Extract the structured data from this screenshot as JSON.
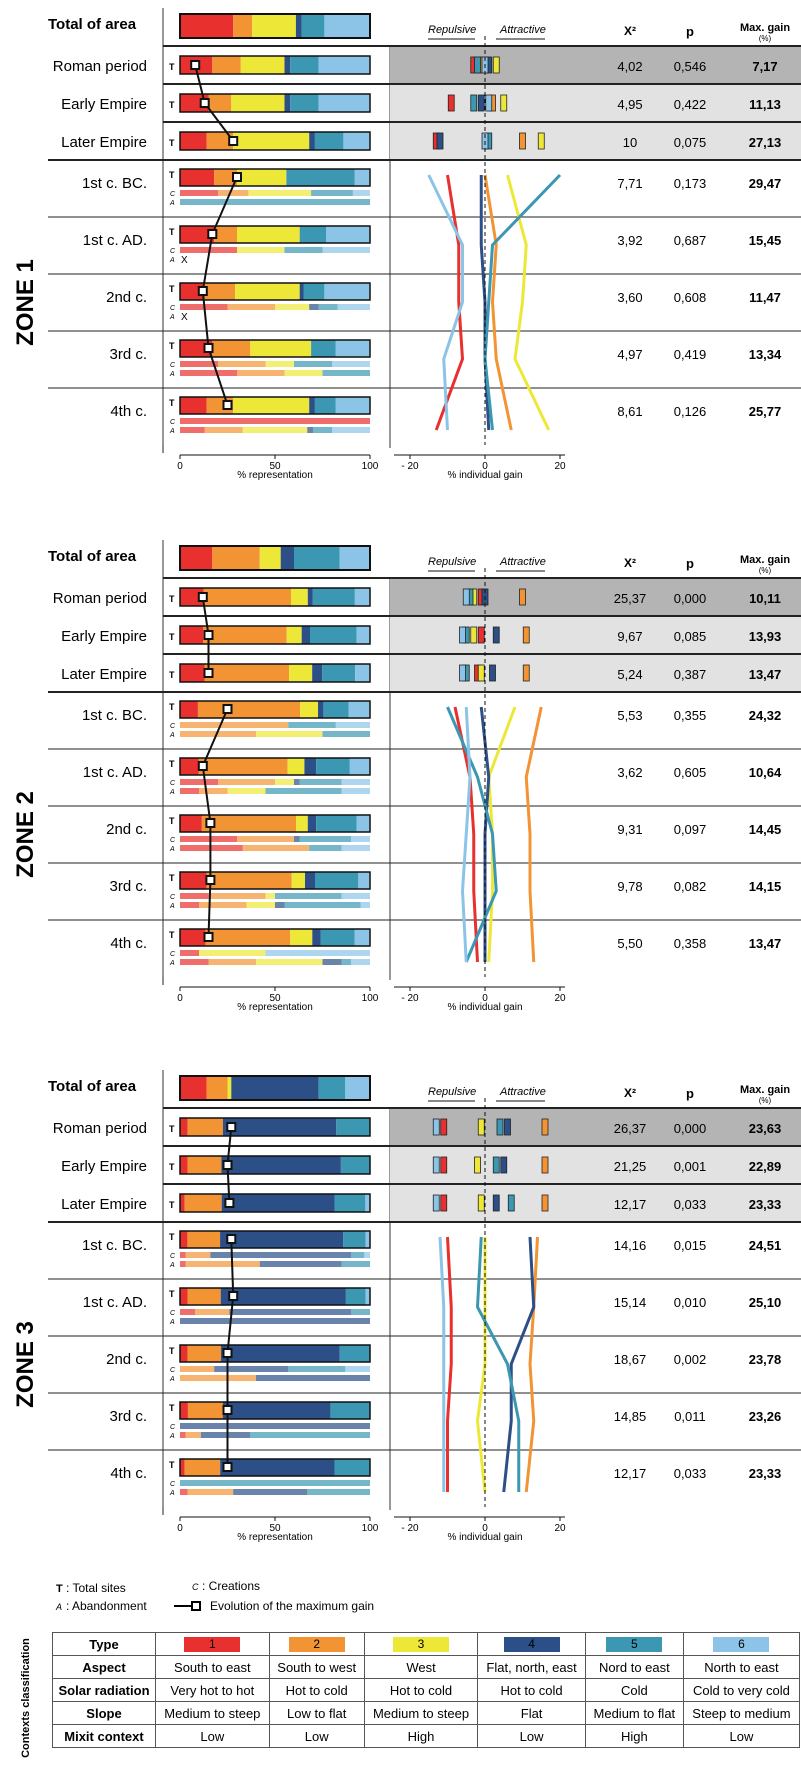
{
  "chart_data": {
    "type": "bar",
    "colors": [
      "#e8312e",
      "#f39434",
      "#ede838",
      "#2b4f86",
      "#3b97b2",
      "#8cc4e8"
    ],
    "header": {
      "total_label": "Total of area",
      "repulsive": "Repulsive",
      "attractive": "Attractive",
      "chi2": "X²",
      "p": "p",
      "maxgain": "Max. gain",
      "maxgain_unit": "(%)"
    },
    "axis": {
      "x1_label": "% representation",
      "x1_ticks": [
        "0",
        "50",
        "100"
      ],
      "x2_label": "% individual gain",
      "x2_ticks": [
        "- 20",
        "0",
        "20"
      ],
      "x1_range": [
        0,
        100
      ],
      "x2_range": [
        -20,
        20
      ]
    },
    "zones": [
      {
        "title": "ZONE 1",
        "total": [
          28,
          10,
          23,
          3,
          12,
          24
        ],
        "periods": [
          {
            "label": "Roman period",
            "chi2": "4,02",
            "p": "0,546",
            "maxgain": "7,17",
            "T": [
              8,
              17,
              15,
              23,
              3,
              15,
              27
            ],
            "gain": [
              -3,
              -1,
              3,
              1,
              -2,
              0
            ],
            "maxpos": 8
          },
          {
            "label": "Early Empire",
            "chi2": "4,95",
            "p": "0,422",
            "maxgain": "11,13",
            "T": [
              13,
              15,
              12,
              28,
              3,
              15,
              27
            ],
            "gain": [
              -9,
              2,
              5,
              -1,
              -3,
              1
            ],
            "maxpos": 13
          },
          {
            "label": "Later Empire",
            "chi2": "10",
            "p": "0,075",
            "maxgain": "27,13",
            "T": [
              28,
              14,
              14,
              40,
              3,
              15,
              14
            ],
            "gain": [
              -13,
              10,
              15,
              -12,
              1,
              0
            ],
            "maxpos": 28
          }
        ],
        "centuries": [
          {
            "label": "1st c. BC.",
            "chi2": "7,71",
            "p": "0,173",
            "maxgain": "29,47",
            "T": [
              30,
              18,
              12,
              26,
              0,
              36,
              8
            ],
            "C": [
              20,
              16,
              33,
              0,
              22,
              9
            ],
            "A": [
              0,
              0,
              0,
              0,
              100,
              0
            ],
            "gain": [
              -10,
              0,
              6,
              -1,
              20,
              -15
            ],
            "maxpos": 30
          },
          {
            "label": "1st c. AD.",
            "chi2": "3,92",
            "p": "0,687",
            "maxgain": "15,45",
            "T": [
              17,
              18,
              12,
              33,
              0,
              14,
              23
            ],
            "C": [
              30,
              0,
              25,
              0,
              20,
              25
            ],
            "A": [],
            "Ax": true,
            "gain": [
              -7,
              3,
              11,
              -1,
              2,
              -6
            ],
            "maxpos": 17
          },
          {
            "label": "2nd c.",
            "chi2": "3,60",
            "p": "0,608",
            "maxgain": "11,47",
            "T": [
              12,
              13,
              16,
              34,
              2,
              11,
              24
            ],
            "C": [
              25,
              25,
              18,
              5,
              10,
              17
            ],
            "A": [],
            "Ax": true,
            "gain": [
              -7,
              2,
              10,
              0,
              1,
              -6
            ],
            "maxpos": 12
          },
          {
            "label": "3rd c.",
            "chi2": "4,97",
            "p": "0,419",
            "maxgain": "13,34",
            "T": [
              15,
              17,
              20,
              32,
              0,
              13,
              18
            ],
            "C": [
              20,
              25,
              15,
              0,
              20,
              20
            ],
            "A": [
              30,
              25,
              20,
              0,
              25,
              0
            ],
            "gain": [
              -6,
              3,
              8,
              0,
              0,
              -11
            ],
            "maxpos": 15
          },
          {
            "label": "4th c.",
            "chi2": "8,61",
            "p": "0,126",
            "maxgain": "25,77",
            "T": [
              25,
              14,
              14,
              40,
              3,
              11,
              18
            ],
            "C": [
              100,
              0,
              0,
              0,
              0,
              0
            ],
            "A": [
              13,
              20,
              34,
              3,
              10,
              20
            ],
            "gain": [
              -13,
              7,
              17,
              1,
              2,
              -10
            ],
            "maxpos": 25
          }
        ]
      },
      {
        "title": "ZONE 2",
        "total": [
          17,
          25,
          11,
          7,
          24,
          16
        ],
        "periods": [
          {
            "label": "Roman period",
            "chi2": "25,37",
            "p": "0,000",
            "maxgain": "10,11",
            "T": [
              12,
              14,
              52,
              10,
              3,
              25,
              9
            ],
            "gain": [
              -1,
              10,
              -3,
              0,
              -4,
              -5
            ],
            "maxpos": 12
          },
          {
            "label": "Early Empire",
            "chi2": "9,67",
            "p": "0,085",
            "maxgain": "13,93",
            "T": [
              15,
              14,
              50,
              9,
              5,
              28,
              8
            ],
            "gain": [
              -1,
              11,
              -3,
              3,
              -5,
              -6
            ],
            "maxpos": 15
          },
          {
            "label": "Later Empire",
            "chi2": "5,24",
            "p": "0,387",
            "maxgain": "13,47",
            "T": [
              15,
              15,
              51,
              14,
              6,
              20,
              9
            ],
            "gain": [
              -2,
              11,
              -1,
              2,
              -5,
              -6
            ],
            "maxpos": 15
          }
        ],
        "centuries": [
          {
            "label": "1st c. BC.",
            "chi2": "5,53",
            "p": "0,355",
            "maxgain": "24,32",
            "T": [
              25,
              10,
              57,
              10,
              3,
              14,
              12
            ],
            "C": [
              0,
              57,
              0,
              0,
              25,
              18
            ],
            "A": [
              0,
              40,
              35,
              0,
              25,
              0
            ],
            "gain": [
              -8,
              15,
              8,
              -1,
              -10,
              -5
            ],
            "maxpos": 25
          },
          {
            "label": "1st c. AD.",
            "chi2": "3,62",
            "p": "0,605",
            "maxgain": "10,64",
            "T": [
              12,
              11,
              53,
              10,
              7,
              20,
              12
            ],
            "C": [
              20,
              30,
              10,
              3,
              22,
              15
            ],
            "A": [
              10,
              15,
              20,
              0,
              40,
              15
            ],
            "gain": [
              -4,
              11,
              1,
              1,
              -2,
              -4
            ],
            "maxpos": 12
          },
          {
            "label": "2nd c.",
            "chi2": "9,31",
            "p": "0,097",
            "maxgain": "14,45",
            "T": [
              16,
              13,
              56,
              7,
              5,
              24,
              8
            ],
            "C": [
              30,
              30,
              0,
              3,
              27,
              10
            ],
            "A": [
              33,
              35,
              0,
              0,
              17,
              15
            ],
            "gain": [
              -3,
              12,
              2,
              0,
              2,
              -5
            ],
            "maxpos": 16
          },
          {
            "label": "3rd c.",
            "chi2": "9,78",
            "p": "0,082",
            "maxgain": "14,15",
            "T": [
              16,
              16,
              51,
              8,
              6,
              26,
              7
            ],
            "C": [
              15,
              30,
              5,
              0,
              35,
              15
            ],
            "A": [
              10,
              25,
              15,
              5,
              40,
              5
            ],
            "gain": [
              -3,
              12,
              2,
              0,
              3,
              -6
            ],
            "maxpos": 16
          },
          {
            "label": "4th c.",
            "chi2": "5,50",
            "p": "0,358",
            "maxgain": "13,47",
            "T": [
              15,
              15,
              50,
              13,
              5,
              20,
              9
            ],
            "C": [
              10,
              0,
              35,
              0,
              0,
              55
            ],
            "A": [
              15,
              25,
              35,
              10,
              5,
              10
            ],
            "gain": [
              -2,
              13,
              1,
              0,
              -5,
              -5
            ],
            "maxpos": 15
          }
        ]
      },
      {
        "title": "ZONE 3",
        "total": [
          14,
          11,
          2,
          46,
          14,
          13
        ],
        "periods": [
          {
            "label": "Roman period",
            "chi2": "26,37",
            "p": "0,000",
            "maxgain": "23,63",
            "T": [
              27,
              5,
              23,
              0,
              74,
              22,
              0
            ],
            "gain": [
              -11,
              16,
              -1,
              6,
              4,
              -13
            ],
            "maxpos": 27
          },
          {
            "label": "Early Empire",
            "chi2": "21,25",
            "p": "0,001",
            "maxgain": "22,89",
            "T": [
              25,
              5,
              22,
              0,
              78,
              19,
              0
            ],
            "gain": [
              -11,
              16,
              -2,
              5,
              3,
              -13
            ],
            "maxpos": 25
          },
          {
            "label": "Later Empire",
            "chi2": "12,17",
            "p": "0,033",
            "maxgain": "23,33",
            "T": [
              26,
              3,
              24,
              0,
              73,
              20,
              3
            ],
            "gain": [
              -11,
              16,
              -1,
              3,
              7,
              -13
            ],
            "maxpos": 26
          }
        ],
        "centuries": [
          {
            "label": "1st c. BC.",
            "chi2": "14,16",
            "p": "0,015",
            "maxgain": "24,51",
            "T": [
              27,
              5,
              22,
              0,
              83,
              15,
              3
            ],
            "C": [
              3,
              13,
              0,
              74,
              7,
              3
            ],
            "A": [
              3,
              39,
              0,
              43,
              15,
              0
            ],
            "gain": [
              -10,
              14,
              0,
              12,
              -1,
              -12
            ],
            "maxpos": 27
          },
          {
            "label": "1st c. AD.",
            "chi2": "15,14",
            "p": "0,010",
            "maxgain": "25,10",
            "T": [
              28,
              5,
              22,
              0,
              83,
              13,
              3
            ],
            "C": [
              8,
              18,
              0,
              64,
              10,
              0
            ],
            "A": [
              0,
              0,
              0,
              100,
              0,
              0
            ],
            "gain": [
              -9,
              13,
              0,
              13,
              -2,
              -11
            ],
            "maxpos": 28
          },
          {
            "label": "2nd c.",
            "chi2": "18,67",
            "p": "0,002",
            "maxgain": "23,78",
            "T": [
              25,
              5,
              22,
              0,
              78,
              20,
              0
            ],
            "C": [
              0,
              18,
              0,
              39,
              30,
              13
            ],
            "A": [
              0,
              40,
              0,
              60,
              0,
              0
            ],
            "gain": [
              -9,
              12,
              0,
              7,
              6,
              -11
            ],
            "maxpos": 25
          },
          {
            "label": "3rd c.",
            "chi2": "14,85",
            "p": "0,011",
            "maxgain": "23,26",
            "T": [
              25,
              5,
              22,
              0,
              68,
              25,
              0
            ],
            "C": [
              0,
              0,
              0,
              100,
              0,
              0
            ],
            "A": [
              3,
              8,
              0,
              26,
              63,
              0
            ],
            "gain": [
              -10,
              13,
              -2,
              7,
              9,
              -11
            ],
            "maxpos": 25
          },
          {
            "label": "4th c.",
            "chi2": "12,17",
            "p": "0,033",
            "maxgain": "23,33",
            "T": [
              25,
              3,
              23,
              0,
              74,
              23,
              0
            ],
            "C": [
              0,
              0,
              0,
              0,
              100,
              0
            ],
            "A": [
              4,
              24,
              0,
              39,
              33,
              0
            ],
            "gain": [
              -10,
              11,
              0,
              5,
              9,
              -11
            ],
            "maxpos": 25
          }
        ]
      }
    ]
  },
  "legend": {
    "t_key": "T",
    "t_text": ": Total sites",
    "a_key": "A",
    "a_text": ": Abandonment",
    "c_key": "C",
    "c_text": ": Creations",
    "line_text": "Evolution of the maximum gain"
  },
  "classification": {
    "side_label": "Contexts classification",
    "rows": [
      {
        "label": "Type",
        "cells": [
          "1",
          "2",
          "3",
          "4",
          "5",
          "6"
        ]
      },
      {
        "label": "Aspect",
        "cells": [
          "South to east",
          "South to west",
          "West",
          "Flat, north, east",
          "Nord to east",
          "North to east"
        ]
      },
      {
        "label": "Solar radiation",
        "cells": [
          "Very hot to hot",
          "Hot to cold",
          "Hot to cold",
          "Hot to cold",
          "Cold",
          "Cold to very cold"
        ]
      },
      {
        "label": "Slope",
        "cells": [
          "Medium to steep",
          "Low to flat",
          "Medium to steep",
          "Flat",
          "Medium to flat",
          "Steep to medium"
        ]
      },
      {
        "label": "Mixit context",
        "cells": [
          "Low",
          "Low",
          "High",
          "Low",
          "High",
          "Low"
        ]
      }
    ]
  }
}
